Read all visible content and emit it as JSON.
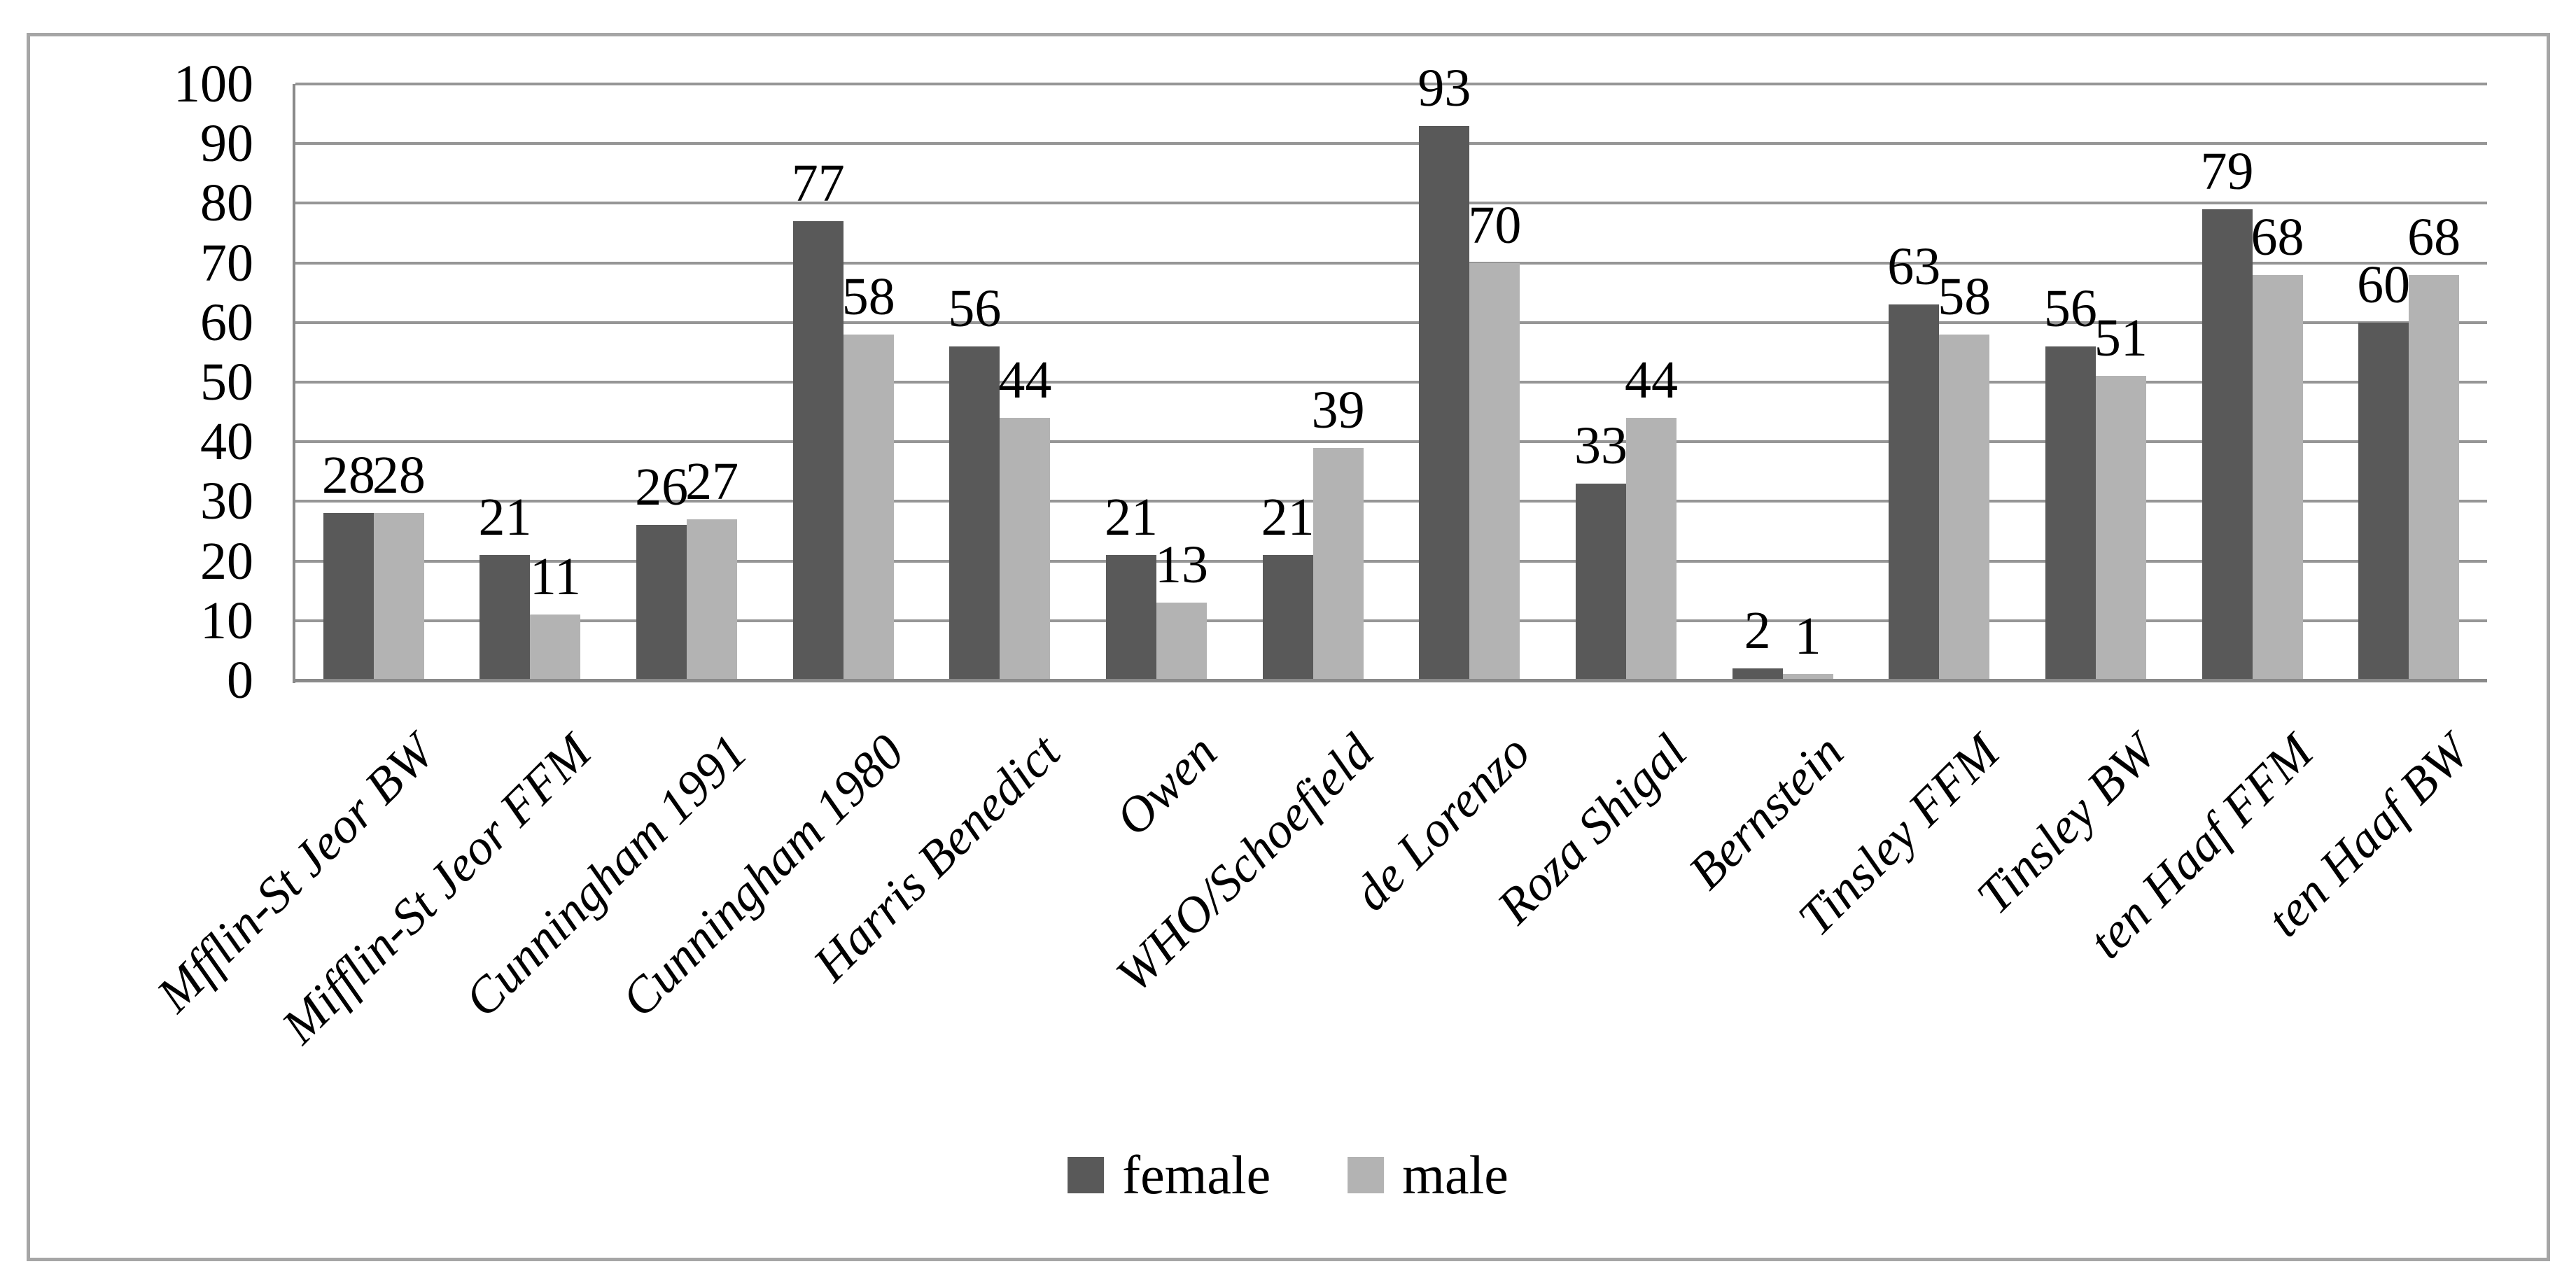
{
  "chart_data": {
    "type": "bar",
    "categories": [
      "Mfflin-St Jeor BW",
      "Mifflin-St Jeor FFM",
      "Cunningham 1991",
      "Cunningham 1980",
      "Harris Benedict",
      "Owen",
      "WHO/Schoefield",
      "de Lorenzo",
      "Roza Shigal",
      "Bernstein",
      "Tinsley FFM",
      "Tinsley BW",
      "ten Haaf FFM",
      "ten Haaf BW"
    ],
    "series": [
      {
        "name": "female",
        "color": "#595959",
        "values": [
          28,
          21,
          26,
          77,
          56,
          21,
          21,
          93,
          33,
          2,
          63,
          56,
          79,
          60
        ]
      },
      {
        "name": "male",
        "color": "#b3b3b3",
        "values": [
          28,
          11,
          27,
          58,
          44,
          13,
          39,
          70,
          44,
          1,
          58,
          51,
          68,
          68
        ]
      }
    ],
    "title": "",
    "xlabel": "",
    "ylabel": "",
    "ylim": [
      0,
      100
    ],
    "yticks": [
      0,
      10,
      20,
      30,
      40,
      50,
      60,
      70,
      80,
      90,
      100
    ],
    "grid": "horizontal",
    "gridline_color": "#969696",
    "axis_line_color": "#8a8a8a",
    "figure_border_color": "#a6a6a6",
    "data_labels": true,
    "legend_position": "bottom-center"
  }
}
